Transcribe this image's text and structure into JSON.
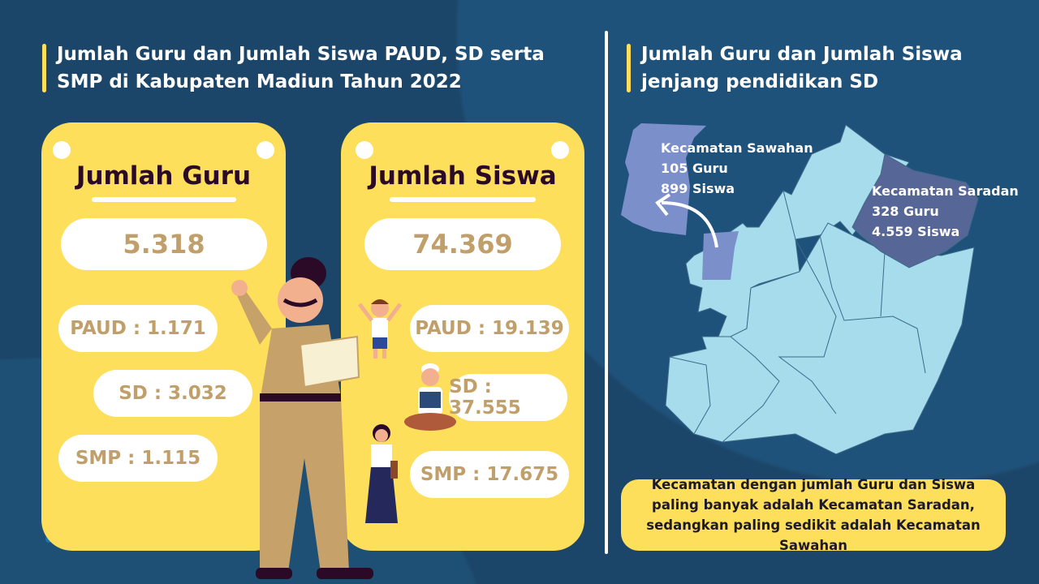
{
  "left_title": "Jumlah Guru dan Jumlah Siswa PAUD, SD serta SMP di Kabupaten Madiun Tahun 2022",
  "right_title": "Jumlah Guru dan Jumlah Siswa jenjang pendidikan SD",
  "guru_card": {
    "heading": "Jumlah Guru",
    "total": "5.318",
    "paud": "PAUD : 1.171",
    "sd": "SD : 3.032",
    "smp": "SMP : 1.115"
  },
  "siswa_card": {
    "heading": "Jumlah Siswa",
    "total": "74.369",
    "paud": "PAUD : 19.139",
    "sd": "SD : 37.555",
    "smp": "SMP : 17.675"
  },
  "map": {
    "sawahan": {
      "name": "Kecamatan Sawahan",
      "guru": "105 Guru",
      "siswa": "899 Siswa"
    },
    "saradan": {
      "name": "Kecamatan Saradan",
      "guru": "328 Guru",
      "siswa": "4.559 Siswa"
    }
  },
  "conclusion": "Kecamatan dengan jumlah Guru dan Siswa paling banyak adalah Kecamatan Saradan, sedangkan paling sedikit adalah Kecamatan Sawahan",
  "colors": {
    "background": "#1c4669",
    "card": "#fedf5b",
    "number": "#c19f6a",
    "map_region": "#a6dcec",
    "sawahan": "#7b8fca",
    "saradan": "#566797"
  }
}
